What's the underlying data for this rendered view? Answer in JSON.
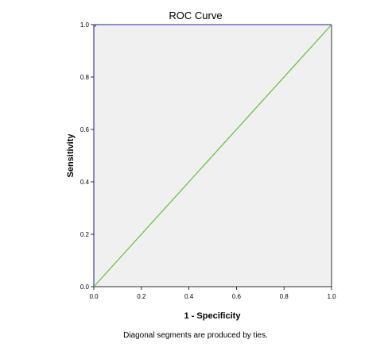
{
  "chart_data": {
    "type": "line",
    "title": "ROC Curve",
    "xlabel": "1 - Specificity",
    "ylabel": "Sensitivity",
    "xlim": [
      0.0,
      1.0
    ],
    "ylim": [
      0.0,
      1.0
    ],
    "x_ticks": [
      "0.0",
      "0.2",
      "0.4",
      "0.6",
      "0.8",
      "1.0"
    ],
    "y_ticks": [
      "0.0",
      "0.2",
      "0.4",
      "0.6",
      "0.8",
      "1.0"
    ],
    "footnote": "Diagonal segments are produced by ties.",
    "grid": false,
    "series": [
      {
        "color": "#4a52a8",
        "points": [
          [
            0.0,
            0.0
          ],
          [
            0.0,
            0.99
          ],
          [
            0.01,
            1.0
          ],
          [
            1.0,
            1.0
          ]
        ]
      },
      {
        "color": "#6cc24a",
        "points": [
          [
            0.0,
            0.0
          ],
          [
            1.0,
            1.0
          ]
        ]
      }
    ],
    "plot_background": "#f0f0f0"
  }
}
